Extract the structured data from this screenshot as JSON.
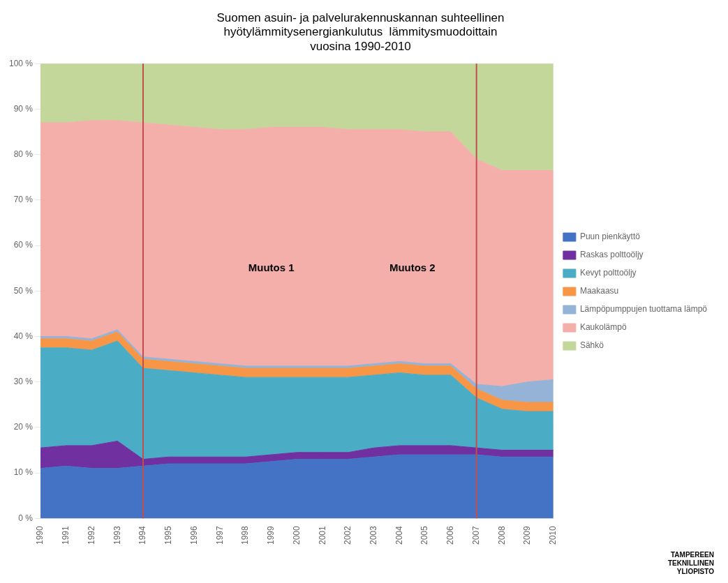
{
  "chart_data": {
    "type": "area",
    "title": "Suomen asuin- ja palvelurakennuskannan suhteellinen\nhyötylämmitysenergiankulutus  lämmitysmuodoittain\nvuosina 1990-2010",
    "x": [
      1990,
      1991,
      1992,
      1993,
      1994,
      1995,
      1996,
      1997,
      1998,
      1999,
      2000,
      2001,
      2002,
      2003,
      2004,
      2005,
      2006,
      2007,
      2008,
      2009,
      2010
    ],
    "stacked": true,
    "series": [
      {
        "name": "Puun pienkäyttö",
        "color": "#4472C4",
        "values": [
          11.0,
          11.5,
          11.0,
          11.0,
          11.5,
          12.0,
          12.0,
          12.0,
          12.0,
          12.5,
          13.0,
          13.0,
          13.0,
          13.5,
          14.0,
          14.0,
          14.0,
          14.0,
          13.5,
          13.5,
          13.5
        ]
      },
      {
        "name": "Raskas polttoöljy",
        "color": "#7030A0",
        "values": [
          4.5,
          4.5,
          5.0,
          6.0,
          1.5,
          1.5,
          1.5,
          1.5,
          1.5,
          1.5,
          1.5,
          1.5,
          1.5,
          2.0,
          2.0,
          2.0,
          2.0,
          1.5,
          1.5,
          1.5,
          1.5
        ]
      },
      {
        "name": "Kevyt polttoöljy",
        "color": "#4BACC6",
        "values": [
          22.0,
          21.5,
          21.0,
          22.0,
          20.0,
          19.0,
          18.5,
          18.0,
          17.5,
          17.0,
          16.5,
          16.5,
          16.5,
          16.0,
          16.0,
          15.5,
          15.5,
          11.0,
          9.0,
          8.5,
          8.5
        ]
      },
      {
        "name": "Maakaasu",
        "color": "#F79646",
        "values": [
          2.0,
          2.0,
          2.0,
          2.0,
          2.0,
          2.0,
          2.0,
          2.0,
          2.0,
          2.0,
          2.0,
          2.0,
          2.0,
          2.0,
          2.0,
          2.0,
          2.0,
          2.0,
          2.0,
          2.0,
          2.0
        ]
      },
      {
        "name": "Lämpöpumppujen tuottama lämpö",
        "color": "#95B3D7",
        "values": [
          0.5,
          0.5,
          0.5,
          0.5,
          0.5,
          0.5,
          0.5,
          0.5,
          0.5,
          0.5,
          0.5,
          0.5,
          0.5,
          0.5,
          0.5,
          0.5,
          0.5,
          1.0,
          3.0,
          4.5,
          5.0
        ]
      },
      {
        "name": "Kaukolämpö",
        "color": "#F4AFAB",
        "values": [
          47.0,
          47.0,
          48.0,
          46.0,
          51.5,
          51.5,
          51.5,
          51.5,
          52.0,
          52.5,
          52.5,
          52.5,
          52.0,
          51.5,
          51.0,
          51.0,
          51.0,
          49.5,
          47.5,
          46.5,
          46.0
        ]
      },
      {
        "name": "Sähkö",
        "color": "#C4D79B",
        "values": [
          13.0,
          13.0,
          12.5,
          12.5,
          13.0,
          13.5,
          14.0,
          14.5,
          14.5,
          14.0,
          14.0,
          14.0,
          14.5,
          14.5,
          14.5,
          15.0,
          15.0,
          21.0,
          23.5,
          23.5,
          23.5
        ]
      }
    ],
    "xlim": [
      1990,
      2010
    ],
    "xticks": [
      1990,
      1991,
      1992,
      1993,
      1994,
      1995,
      1996,
      1997,
      1998,
      1999,
      2000,
      2001,
      2002,
      2003,
      2004,
      2005,
      2006,
      2007,
      2008,
      2009,
      2010
    ],
    "ylim": [
      0,
      100
    ],
    "yticks": [
      {
        "value": 0,
        "label": "0 %"
      },
      {
        "value": 10,
        "label": "10 %"
      },
      {
        "value": 20,
        "label": "20 %"
      },
      {
        "value": 30,
        "label": "30 %"
      },
      {
        "value": 40,
        "label": "40 %"
      },
      {
        "value": 50,
        "label": "50 %"
      },
      {
        "value": 60,
        "label": "60 %"
      },
      {
        "value": 70,
        "label": "70 %"
      },
      {
        "value": 80,
        "label": "80 %"
      },
      {
        "value": 90,
        "label": "90 %"
      },
      {
        "value": 100,
        "label": "100 %"
      }
    ],
    "grid": "y",
    "legend": "right",
    "vlines": [
      {
        "x": 1994,
        "color": "#C0504D"
      },
      {
        "x": 2007,
        "color": "#C0504D"
      }
    ],
    "annotations": [
      {
        "text": "Muutos 1",
        "x": 1999.0,
        "y": 55
      },
      {
        "text": "Muutos 2",
        "x": 2004.5,
        "y": 55
      }
    ],
    "footnote": "TAMPEREEN\nTEKNILLINEN\nYLIOPISTO"
  }
}
